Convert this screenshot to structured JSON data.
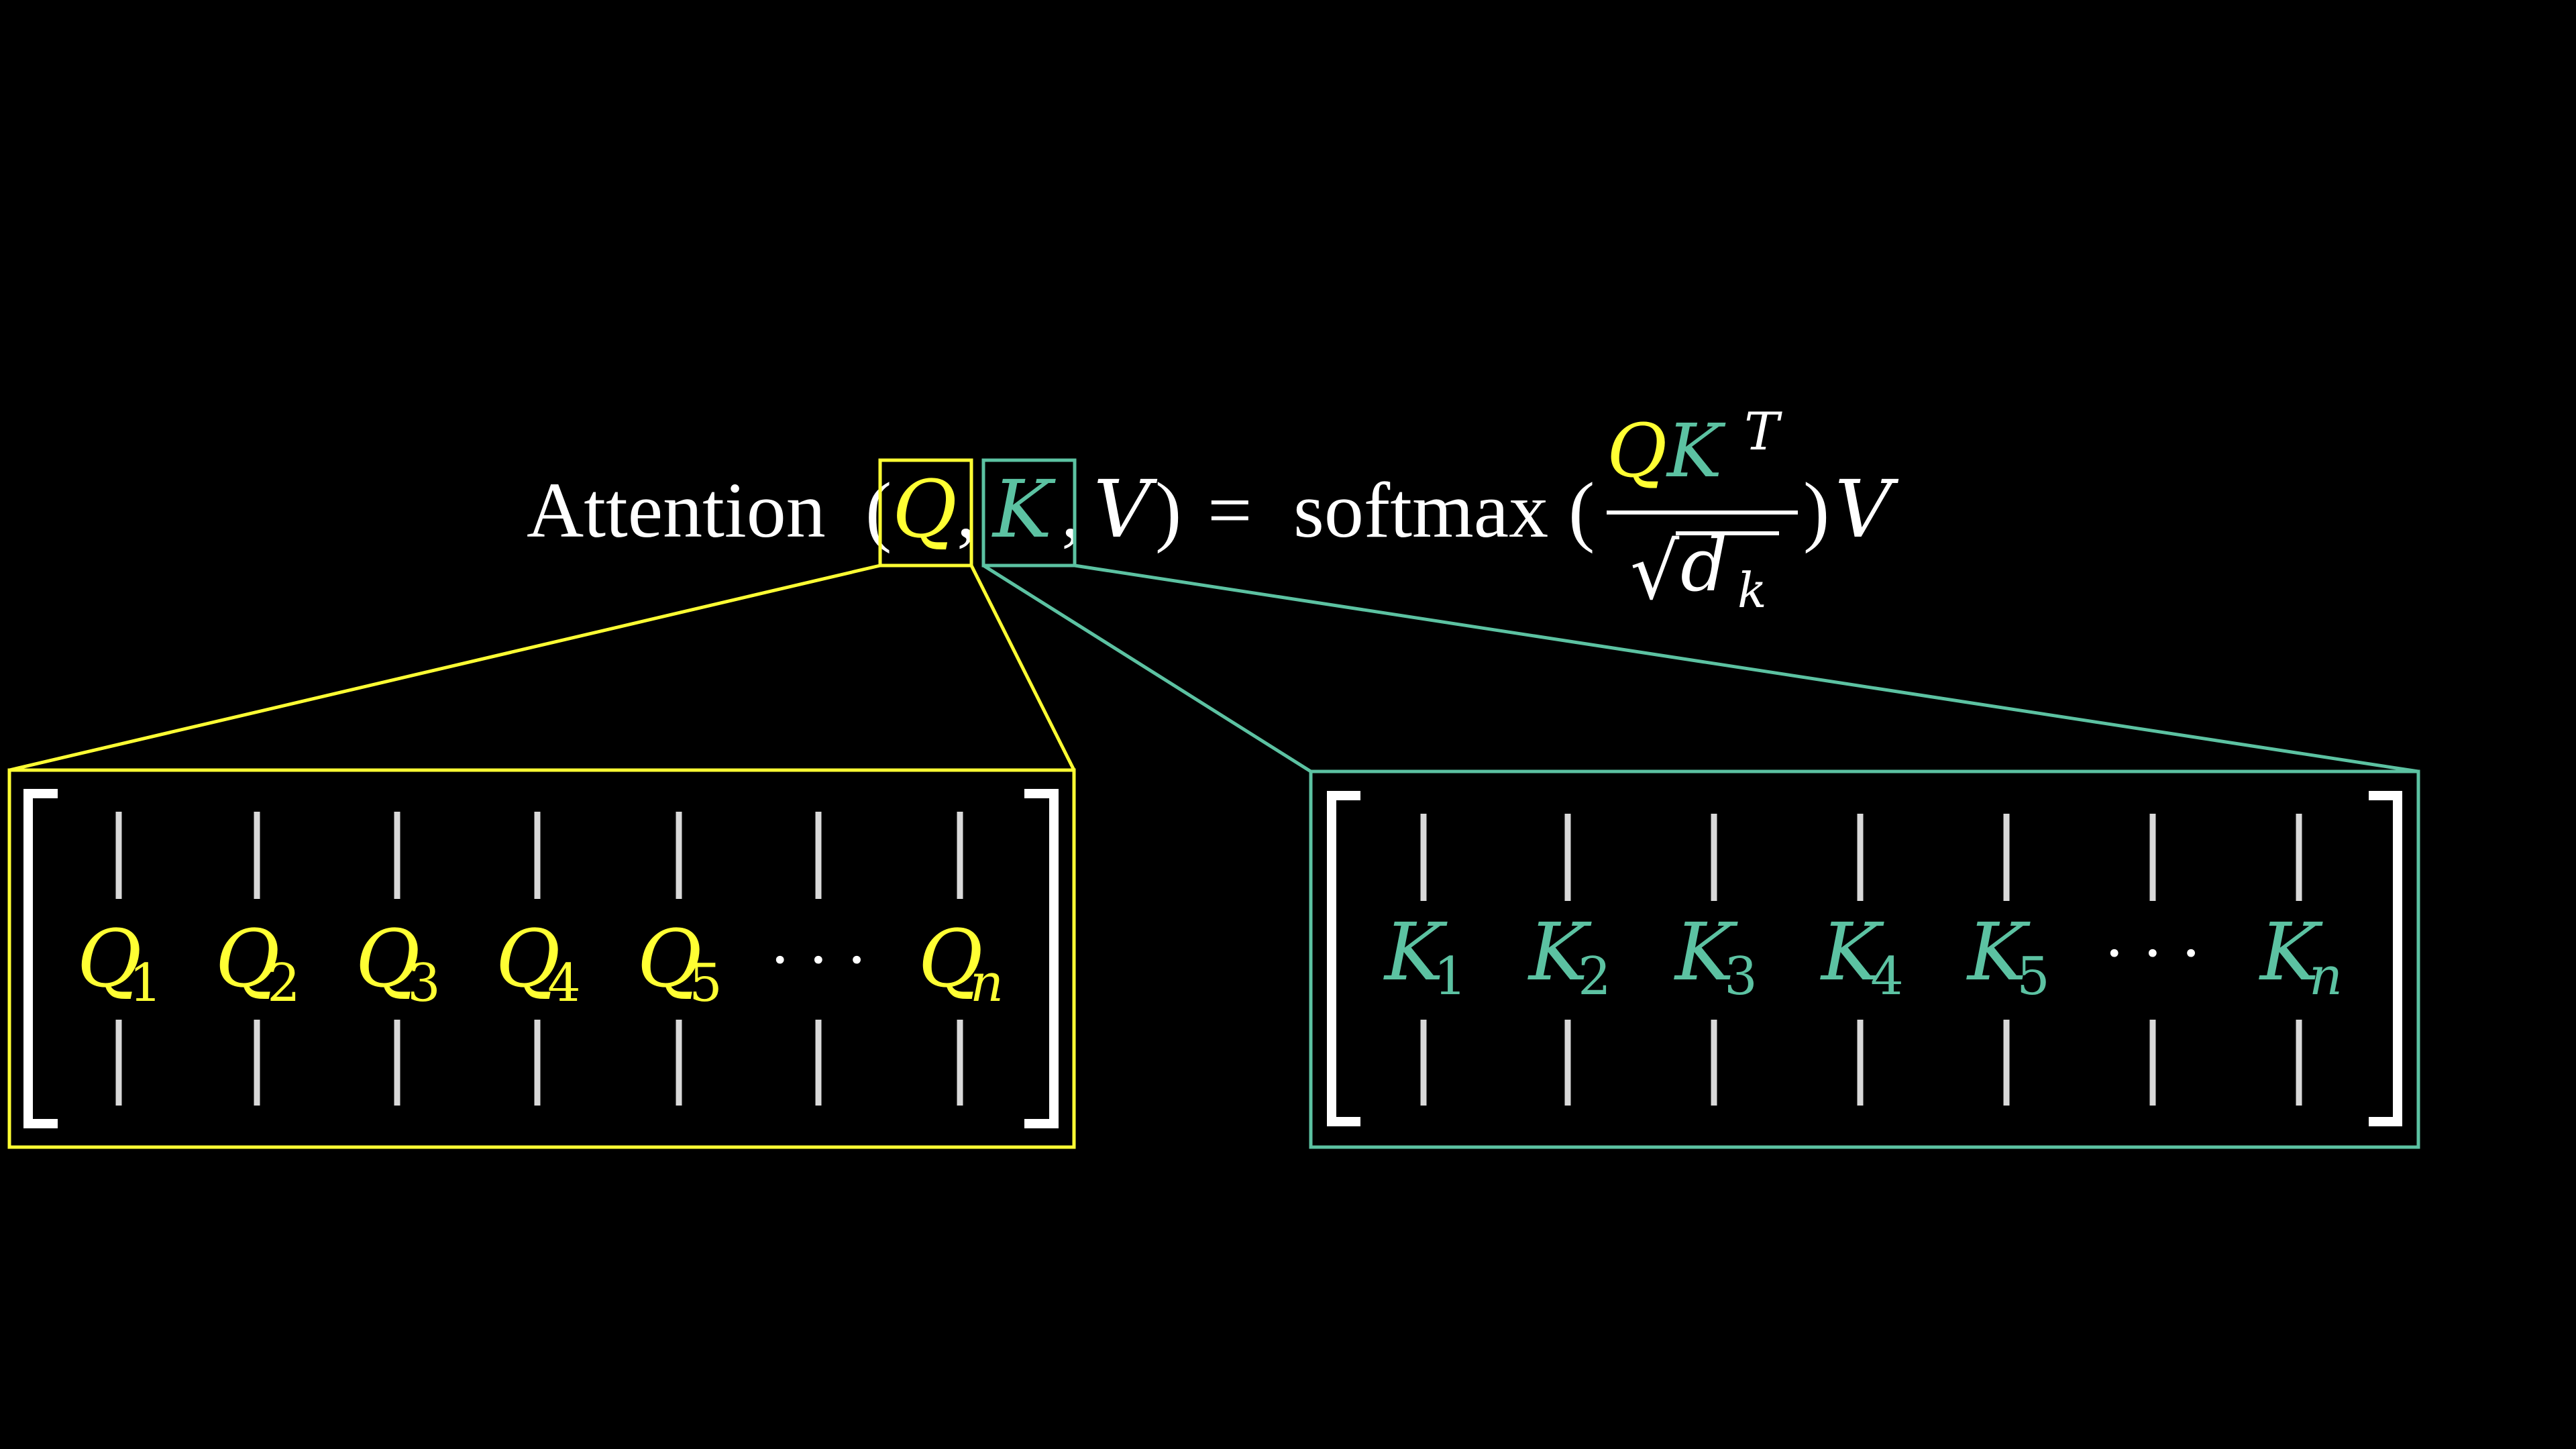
{
  "colors": {
    "background": "#000000",
    "text": "#ffffff",
    "query": "#ffff33",
    "key": "#5cc2a2",
    "bracket": "#ffffff",
    "column_bar": "#d9d9d9"
  },
  "equation": {
    "function_name": "Attention",
    "open_paren": "(",
    "q": "Q",
    "comma1": ",",
    "k": "K",
    "comma2": ",",
    "v": "V",
    "close_paren": ")",
    "equals": "=",
    "softmax": "softmax",
    "softmax_open": "(",
    "numerator_q": "Q",
    "numerator_k": "K",
    "transpose": "T",
    "sqrt_symbol": "√",
    "denominator_d": "d",
    "denominator_sub": "k",
    "softmax_close": ")",
    "trailing_v": "V"
  },
  "query_matrix": {
    "symbol": "Q",
    "subscripts": [
      "1",
      "2",
      "3",
      "4",
      "5",
      "n"
    ],
    "ellipsis": "· · ·"
  },
  "key_matrix": {
    "symbol": "K",
    "subscripts": [
      "1",
      "2",
      "3",
      "4",
      "5",
      "n"
    ],
    "ellipsis": "· · ·"
  }
}
